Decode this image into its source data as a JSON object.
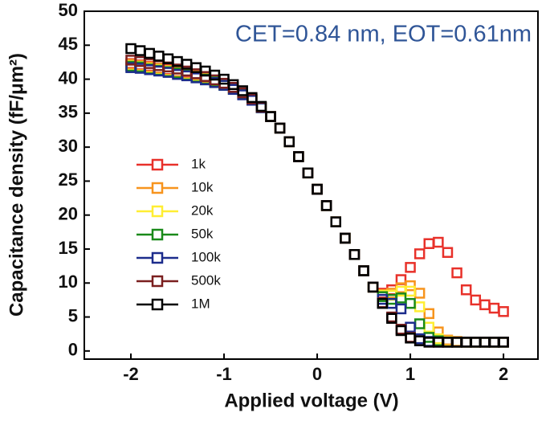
{
  "chart_data": {
    "type": "line",
    "annotation": "CET=0.84 nm, EOT=0.61nm",
    "x_label": "Applied voltage (V)",
    "y_label": "Capacitance density (fF/μm²)",
    "x": [
      -2.0,
      -1.9,
      -1.8,
      -1.7,
      -1.6,
      -1.5,
      -1.4,
      -1.3,
      -1.2,
      -1.1,
      -1.0,
      -0.9,
      -0.8,
      -0.7,
      -0.6,
      -0.5,
      -0.4,
      -0.3,
      -0.2,
      -0.1,
      0.0,
      0.1,
      0.2,
      0.3,
      0.4,
      0.5,
      0.6,
      0.7,
      0.8,
      0.9,
      1.0,
      1.1,
      1.2,
      1.3,
      1.4,
      1.5,
      1.6,
      1.7,
      1.8,
      1.9,
      2.0
    ],
    "series": [
      {
        "name": "1k",
        "color": "#e8312a",
        "values": [
          42.3,
          42.1,
          41.9,
          41.6,
          41.4,
          41.1,
          40.9,
          40.5,
          40.2,
          39.7,
          39.3,
          38.6,
          37.9,
          37.0,
          35.9,
          34.5,
          32.8,
          30.8,
          28.6,
          26.2,
          23.8,
          21.4,
          19.0,
          16.6,
          14.2,
          11.8,
          9.4,
          8.5,
          9.0,
          10.5,
          12.3,
          14.3,
          15.8,
          16.0,
          14.5,
          11.5,
          9.0,
          7.5,
          6.8,
          6.3,
          5.8
        ]
      },
      {
        "name": "10k",
        "color": "#f7941d",
        "values": [
          42.2,
          42.0,
          41.8,
          41.6,
          41.3,
          41.1,
          40.8,
          40.5,
          40.1,
          39.7,
          39.2,
          38.6,
          37.8,
          37.0,
          35.8,
          34.5,
          32.8,
          30.8,
          28.6,
          26.2,
          23.8,
          21.4,
          19.0,
          16.6,
          14.2,
          11.8,
          9.4,
          8.3,
          8.5,
          9.3,
          9.6,
          8.5,
          5.5,
          2.8,
          1.6,
          1.4,
          1.3,
          1.3,
          1.3,
          1.3,
          1.3
        ]
      },
      {
        "name": "20k",
        "color": "#ffee33",
        "values": [
          42.0,
          41.9,
          41.6,
          41.4,
          41.2,
          40.9,
          40.7,
          40.4,
          40.0,
          39.6,
          39.2,
          38.5,
          37.8,
          37.0,
          35.8,
          34.5,
          32.8,
          30.8,
          28.6,
          26.2,
          23.8,
          21.4,
          19.0,
          16.6,
          14.2,
          11.8,
          9.4,
          8.2,
          8.2,
          8.8,
          8.8,
          6.5,
          3.5,
          1.8,
          1.4,
          1.3,
          1.3,
          1.3,
          1.3,
          1.3,
          1.3
        ]
      },
      {
        "name": "50k",
        "color": "#1a8a1a",
        "values": [
          41.9,
          41.8,
          41.5,
          41.3,
          41.1,
          40.9,
          40.6,
          40.3,
          40.0,
          39.6,
          39.1,
          38.5,
          37.8,
          37.0,
          35.8,
          34.5,
          32.8,
          30.8,
          28.6,
          26.2,
          23.8,
          21.4,
          19.0,
          16.6,
          14.2,
          11.8,
          9.4,
          8.0,
          7.6,
          7.8,
          7.0,
          4.0,
          2.0,
          1.5,
          1.3,
          1.3,
          1.3,
          1.3,
          1.3,
          1.3,
          1.3
        ]
      },
      {
        "name": "100k",
        "color": "#1c2c8c",
        "values": [
          41.7,
          41.6,
          41.4,
          41.2,
          41.0,
          40.7,
          40.5,
          40.2,
          39.9,
          39.5,
          39.1,
          38.5,
          37.7,
          36.9,
          35.8,
          34.5,
          32.8,
          30.8,
          28.6,
          26.2,
          23.8,
          21.4,
          19.0,
          16.6,
          14.2,
          11.8,
          9.4,
          7.6,
          7.0,
          6.2,
          3.5,
          1.8,
          1.4,
          1.3,
          1.3,
          1.3,
          1.3,
          1.3,
          1.3,
          1.3,
          1.3
        ]
      },
      {
        "name": "500k",
        "color": "#7a1f1f",
        "values": [
          42.8,
          42.6,
          42.3,
          42.0,
          41.8,
          41.5,
          41.2,
          40.8,
          40.4,
          39.9,
          39.4,
          38.8,
          38.0,
          37.1,
          35.9,
          34.5,
          32.8,
          30.8,
          28.6,
          26.2,
          23.8,
          21.4,
          19.0,
          16.6,
          14.2,
          11.8,
          9.4,
          7.1,
          5.0,
          3.2,
          2.0,
          1.5,
          1.3,
          1.3,
          1.3,
          1.3,
          1.3,
          1.3,
          1.3,
          1.3,
          1.3
        ]
      },
      {
        "name": "1M",
        "color": "#000000",
        "values": [
          44.5,
          44.2,
          43.8,
          43.4,
          43.0,
          42.6,
          42.2,
          41.7,
          41.2,
          40.6,
          40.0,
          39.2,
          38.3,
          37.3,
          36.0,
          34.5,
          32.8,
          30.8,
          28.6,
          26.2,
          23.8,
          21.4,
          19.0,
          16.6,
          14.2,
          11.8,
          9.4,
          7.0,
          4.8,
          3.0,
          1.9,
          1.5,
          1.3,
          1.3,
          1.3,
          1.3,
          1.3,
          1.3,
          1.3,
          1.3,
          1.3
        ]
      }
    ],
    "xlim": [
      -2.5,
      2.37
    ],
    "xticks": [
      -2,
      -1,
      0,
      1,
      2
    ],
    "ylim": [
      -1.2,
      50
    ],
    "yticks": [
      0,
      5,
      10,
      15,
      20,
      25,
      30,
      35,
      40,
      45,
      50
    ],
    "grid": false,
    "legend": "center left",
    "annotation_color": "#2f5597"
  }
}
